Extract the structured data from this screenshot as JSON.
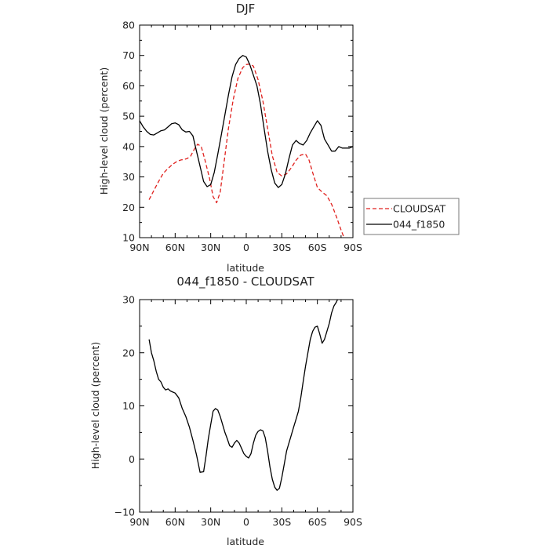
{
  "chart_data": [
    {
      "type": "line",
      "title": "DJF",
      "xlabel": "latitude",
      "ylabel": "High-level cloud (percent)",
      "xlim": [
        90,
        -90
      ],
      "ylim": [
        10,
        80
      ],
      "x_ticks": [
        90,
        60,
        30,
        0,
        -30,
        -60,
        -90
      ],
      "x_tick_labels": [
        "90N",
        "60N",
        "30N",
        "0",
        "30S",
        "60S",
        "90S"
      ],
      "y_ticks": [
        10,
        20,
        30,
        40,
        50,
        60,
        70,
        80
      ],
      "y_tick_labels": [
        "10",
        "20",
        "30",
        "40",
        "50",
        "60",
        "70",
        "80"
      ],
      "grid": false,
      "legend_placement": "right, outside bottom",
      "series": [
        {
          "name": "CLOUDSAT",
          "color": "#e0211e",
          "dash": "dashed",
          "x": [
            82,
            78,
            74,
            70,
            66,
            62,
            58,
            55,
            52,
            50,
            47,
            44,
            41,
            38,
            35,
            31,
            28,
            25,
            22,
            19,
            15,
            11,
            7,
            3,
            0,
            -3,
            -6,
            -10,
            -14,
            -18,
            -22,
            -26,
            -30,
            -34,
            -38,
            -42,
            -46,
            -50,
            -53,
            -56,
            -60,
            -64,
            -68,
            -72,
            -76,
            -80,
            -84
          ],
          "y": [
            22.5,
            25.5,
            28.5,
            31.2,
            32.8,
            34.2,
            35.2,
            35.6,
            35.8,
            36.0,
            36.8,
            39.0,
            40.8,
            40.0,
            35.8,
            29.5,
            23.5,
            21.5,
            25.0,
            34.0,
            46.0,
            55.5,
            62.5,
            66.0,
            67.0,
            67.2,
            66.5,
            62.0,
            55.0,
            46.0,
            37.0,
            31.5,
            30.3,
            31.0,
            33.0,
            35.5,
            37.2,
            37.5,
            35.5,
            31.5,
            26.5,
            25.0,
            23.8,
            21.0,
            17.0,
            12.5,
            8.5
          ]
        },
        {
          "name": "044_f1850",
          "color": "#000000",
          "dash": "solid",
          "x": [
            90,
            87,
            84,
            81,
            78,
            75,
            72,
            69,
            66,
            63,
            60,
            57,
            54,
            51,
            48,
            45,
            42,
            39,
            36,
            33,
            30,
            27,
            24,
            21,
            18,
            15,
            12,
            9,
            6,
            3,
            0,
            -3,
            -6,
            -9,
            -12,
            -15,
            -18,
            -21,
            -24,
            -27,
            -30,
            -33,
            -36,
            -39,
            -42,
            -45,
            -48,
            -51,
            -54,
            -57,
            -60,
            -63,
            -66,
            -69,
            -72,
            -75,
            -78,
            -81,
            -84,
            -87,
            -90
          ],
          "y": [
            48.5,
            46.5,
            45.0,
            44.0,
            43.8,
            44.5,
            45.2,
            45.5,
            46.5,
            47.5,
            47.8,
            47.2,
            45.5,
            44.8,
            45.0,
            43.5,
            38.5,
            33.5,
            28.5,
            26.8,
            27.5,
            31.5,
            37.5,
            44.0,
            50.5,
            57.0,
            63.0,
            67.0,
            69.0,
            70.0,
            69.5,
            67.0,
            63.5,
            60.0,
            54.0,
            46.0,
            38.5,
            32.5,
            28.0,
            26.5,
            27.5,
            31.0,
            36.0,
            40.5,
            42.0,
            41.0,
            40.5,
            42.0,
            44.5,
            46.5,
            48.5,
            47.0,
            42.5,
            40.5,
            38.5,
            38.5,
            40.0,
            39.5,
            39.5,
            39.5,
            40.0
          ]
        }
      ]
    },
    {
      "type": "line",
      "title": "044_f1850 - CLOUDSAT",
      "xlabel": "latitude",
      "ylabel": "High-level cloud (percent)",
      "xlim": [
        90,
        -90
      ],
      "ylim": [
        -10,
        30
      ],
      "x_ticks": [
        90,
        60,
        30,
        0,
        -30,
        -60,
        -90
      ],
      "x_tick_labels": [
        "90N",
        "60N",
        "30N",
        "0",
        "30S",
        "60S",
        "90S"
      ],
      "y_ticks": [
        -10,
        0,
        10,
        20,
        30
      ],
      "y_tick_labels": [
        "−10",
        "0",
        "10",
        "20",
        "30"
      ],
      "grid": false,
      "series": [
        {
          "color": "#000000",
          "dash": "solid",
          "x": [
            82,
            80,
            78,
            76,
            74,
            72,
            70,
            68,
            66,
            64,
            62,
            60,
            57,
            54,
            51,
            48,
            45,
            42,
            39,
            36,
            34,
            32,
            30,
            28,
            26,
            24,
            22,
            20,
            18,
            16,
            14,
            12,
            10,
            8,
            6,
            4,
            2,
            0,
            -2,
            -4,
            -6,
            -8,
            -10,
            -12,
            -14,
            -16,
            -18,
            -20,
            -22,
            -24,
            -26,
            -28,
            -30,
            -32,
            -34,
            -36,
            -38,
            -40,
            -42,
            -44,
            -46,
            -48,
            -50,
            -52,
            -54,
            -56,
            -58,
            -60,
            -62,
            -64,
            -66,
            -68,
            -70,
            -72,
            -74,
            -76,
            -78,
            -80,
            -82,
            -84
          ],
          "y": [
            22.5,
            20.0,
            18.5,
            16.5,
            15.0,
            14.5,
            13.5,
            13.0,
            13.2,
            12.8,
            12.6,
            12.4,
            11.5,
            9.5,
            8.0,
            6.0,
            3.5,
            0.8,
            -2.5,
            -2.4,
            0.5,
            3.8,
            6.5,
            9.0,
            9.5,
            9.2,
            8.0,
            6.5,
            5.0,
            3.8,
            2.5,
            2.2,
            3.0,
            3.5,
            3.0,
            2.0,
            1.0,
            0.5,
            0.2,
            1.0,
            3.0,
            4.5,
            5.2,
            5.5,
            5.3,
            4.0,
            1.5,
            -1.5,
            -3.8,
            -5.3,
            -5.9,
            -5.5,
            -3.5,
            -1.0,
            1.5,
            3.0,
            4.5,
            6.0,
            7.5,
            9.0,
            11.5,
            14.5,
            17.5,
            20.0,
            22.5,
            24.0,
            24.8,
            25.0,
            23.5,
            21.8,
            22.5,
            24.0,
            25.5,
            27.5,
            28.8,
            29.5,
            30.5,
            31.0,
            31.2,
            31.5
          ]
        }
      ]
    }
  ]
}
